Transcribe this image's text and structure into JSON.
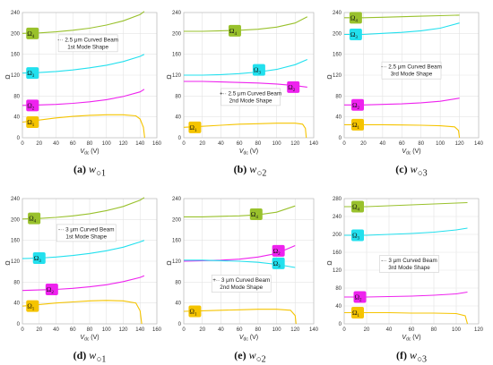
{
  "chart_data": [
    {
      "type": "line",
      "caption": {
        "label": "(a)",
        "symbol": "w",
        "subscript": "○1"
      },
      "xlabel": "V",
      "xlabel_sub": "dc",
      "xlabel_unit": "(V)",
      "ylabel": "Ω",
      "xlim": [
        0,
        160
      ],
      "ylim": [
        0,
        240
      ],
      "xticks": [
        0,
        20,
        40,
        60,
        80,
        100,
        120,
        140,
        160
      ],
      "yticks": [
        0,
        40,
        80,
        120,
        160,
        200,
        240
      ],
      "annotation": {
        "lines": [
          "2.5 μm Curved Beam",
          "1st Mode Shape"
        ],
        "marker": "-··",
        "pos": [
          78,
          182
        ]
      },
      "series": [
        {
          "name": "Ω₁",
          "color": "#f5c400",
          "x": [
            0,
            20,
            40,
            60,
            80,
            100,
            120,
            135,
            140,
            144,
            145.5
          ],
          "y": [
            30,
            34,
            38,
            41,
            43,
            44,
            44,
            42,
            36,
            20,
            0
          ],
          "badge": [
            12,
            30
          ]
        },
        {
          "name": "Ω₂",
          "color": "#ee22ee",
          "x": [
            0,
            20,
            40,
            60,
            80,
            100,
            120,
            140,
            145
          ],
          "y": [
            62,
            63,
            64,
            66,
            69,
            73,
            79,
            88,
            93
          ],
          "badge": [
            12,
            62
          ]
        },
        {
          "name": "Ω₃",
          "color": "#22e0ee",
          "x": [
            0,
            20,
            40,
            60,
            80,
            100,
            120,
            140,
            145
          ],
          "y": [
            124,
            125,
            127,
            130,
            134,
            139,
            146,
            156,
            160
          ],
          "badge": [
            12,
            124
          ]
        },
        {
          "name": "Ω₄",
          "color": "#99c12c",
          "x": [
            0,
            20,
            40,
            60,
            80,
            100,
            120,
            140,
            145
          ],
          "y": [
            200,
            201,
            203,
            206,
            210,
            216,
            224,
            236,
            242
          ],
          "badge": [
            12,
            200
          ]
        }
      ]
    },
    {
      "type": "line",
      "caption": {
        "label": "(b)",
        "symbol": "w",
        "subscript": "○2"
      },
      "xlabel": "V",
      "xlabel_sub": "dc",
      "xlabel_unit": "(V)",
      "ylabel": "Ω",
      "xlim": [
        0,
        140
      ],
      "ylim": [
        0,
        240
      ],
      "xticks": [
        0,
        20,
        40,
        60,
        80,
        100,
        120,
        140
      ],
      "yticks": [
        0,
        40,
        80,
        120,
        160,
        200,
        240
      ],
      "annotation": {
        "lines": [
          "2.5 μm Curved Beam",
          "2nd Mode Shape"
        ],
        "marker": "+··",
        "pos": [
          72,
          79
        ]
      },
      "series": [
        {
          "name": "Ω₁",
          "color": "#f5c400",
          "x": [
            0,
            20,
            40,
            60,
            80,
            100,
            120,
            128,
            131,
            132
          ],
          "y": [
            20,
            22,
            24,
            26,
            27,
            28,
            28,
            26,
            18,
            0
          ],
          "badge": [
            12,
            20
          ]
        },
        {
          "name": "Ω₂",
          "color": "#ee22ee",
          "x": [
            0,
            20,
            40,
            60,
            80,
            100,
            120,
            133
          ],
          "y": [
            108,
            108,
            107,
            106,
            105,
            103,
            100,
            97
          ],
          "badge": [
            118,
            97
          ]
        },
        {
          "name": "Ω₃",
          "color": "#22e0ee",
          "x": [
            0,
            20,
            40,
            60,
            80,
            100,
            120,
            133
          ],
          "y": [
            120,
            120,
            121,
            123,
            126,
            131,
            140,
            150
          ],
          "badge": [
            81,
            130
          ]
        },
        {
          "name": "Ω₄",
          "color": "#99c12c",
          "x": [
            0,
            20,
            40,
            60,
            80,
            100,
            120,
            133
          ],
          "y": [
            204,
            204,
            205,
            206,
            208,
            212,
            220,
            232
          ],
          "badge": [
            55,
            205
          ]
        }
      ]
    },
    {
      "type": "line",
      "caption": {
        "label": "(c)",
        "symbol": "w",
        "subscript": "○3"
      },
      "xlabel": "V",
      "xlabel_sub": "dc",
      "xlabel_unit": "(V)",
      "ylabel": "Ω",
      "xlim": [
        0,
        140
      ],
      "ylim": [
        0,
        240
      ],
      "xticks": [
        0,
        20,
        40,
        60,
        80,
        100,
        120,
        140
      ],
      "yticks": [
        0,
        40,
        80,
        120,
        160,
        200,
        240
      ],
      "annotation": {
        "lines": [
          "2.5 μm Curved Beam",
          "3rd Mode Shape"
        ],
        "marker": "-··",
        "pos": [
          70,
          130
        ]
      },
      "series": [
        {
          "name": "Ω₁",
          "color": "#f5c400",
          "x": [
            0,
            20,
            40,
            60,
            80,
            100,
            115,
            119,
            120
          ],
          "y": [
            25,
            25,
            25,
            24.5,
            24,
            23,
            21,
            14,
            0
          ],
          "badge": [
            14,
            25
          ]
        },
        {
          "name": "Ω₂",
          "color": "#ee22ee",
          "x": [
            0,
            20,
            40,
            60,
            80,
            100,
            120
          ],
          "y": [
            63,
            63,
            64,
            65,
            67,
            70,
            76
          ],
          "badge": [
            14,
            63
          ]
        },
        {
          "name": "Ω₃",
          "color": "#22e0ee",
          "x": [
            0,
            20,
            40,
            60,
            80,
            100,
            120
          ],
          "y": [
            198,
            198,
            200,
            202,
            205,
            210,
            220
          ],
          "badge": [
            12,
            198
          ]
        },
        {
          "name": "Ω₄",
          "color": "#99c12c",
          "x": [
            0,
            20,
            40,
            60,
            80,
            100,
            120
          ],
          "y": [
            230,
            230,
            231,
            232,
            233,
            234,
            235
          ],
          "badge": [
            12,
            230
          ]
        }
      ]
    },
    {
      "type": "line",
      "caption": {
        "label": "(d)",
        "symbol": "w",
        "subscript": "○1"
      },
      "xlabel": "V",
      "xlabel_sub": "dc",
      "xlabel_unit": "(V)",
      "ylabel": "Ω",
      "xlim": [
        0,
        160
      ],
      "ylim": [
        0,
        240
      ],
      "xticks": [
        0,
        20,
        40,
        60,
        80,
        100,
        120,
        140,
        160
      ],
      "yticks": [
        0,
        40,
        80,
        120,
        160,
        200,
        240
      ],
      "annotation": {
        "lines": [
          "3 μm Curved Beam",
          "1st Mode Shape"
        ],
        "marker": "-··",
        "pos": [
          76,
          175
        ]
      },
      "series": [
        {
          "name": "Ω₁",
          "color": "#f5c400",
          "x": [
            0,
            20,
            40,
            60,
            80,
            100,
            120,
            135,
            140,
            142
          ],
          "y": [
            34,
            37,
            40,
            42,
            44,
            45,
            44,
            40,
            25,
            0
          ],
          "badge": [
            12,
            34
          ]
        },
        {
          "name": "Ω₂",
          "color": "#ee22ee",
          "x": [
            0,
            20,
            40,
            60,
            80,
            100,
            120,
            140,
            145
          ],
          "y": [
            64,
            65,
            66,
            68,
            71,
            75,
            81,
            89,
            92
          ],
          "badge": [
            35,
            66
          ]
        },
        {
          "name": "Ω₃",
          "color": "#22e0ee",
          "x": [
            0,
            20,
            40,
            60,
            80,
            100,
            120,
            140,
            145
          ],
          "y": [
            125,
            126,
            128,
            131,
            135,
            140,
            147,
            157,
            160
          ],
          "badge": [
            20,
            126
          ]
        },
        {
          "name": "Ω₄",
          "color": "#99c12c",
          "x": [
            0,
            20,
            40,
            60,
            80,
            100,
            120,
            140,
            145
          ],
          "y": [
            201,
            202,
            204,
            207,
            211,
            217,
            225,
            237,
            242
          ],
          "badge": [
            14,
            202
          ]
        }
      ]
    },
    {
      "type": "line",
      "caption": {
        "label": "(e)",
        "symbol": "w",
        "subscript": "○2"
      },
      "xlabel": "V",
      "xlabel_sub": "dc",
      "xlabel_unit": "(V)",
      "ylabel": "Ω",
      "xlim": [
        0,
        140
      ],
      "ylim": [
        0,
        240
      ],
      "xticks": [
        0,
        20,
        40,
        60,
        80,
        100,
        120,
        140
      ],
      "yticks": [
        0,
        40,
        80,
        120,
        160,
        200,
        240
      ],
      "annotation": {
        "lines": [
          "3 μm Curved Beam",
          "2nd Mode Shape"
        ],
        "marker": "+··",
        "pos": [
          62,
          78
        ]
      },
      "series": [
        {
          "name": "Ω₁",
          "color": "#f5c400",
          "x": [
            0,
            20,
            40,
            60,
            80,
            100,
            115,
            120,
            121
          ],
          "y": [
            24,
            25,
            26,
            27,
            28,
            28,
            26,
            16,
            0
          ],
          "badge": [
            12,
            24
          ]
        },
        {
          "name": "Ω₂",
          "color": "#ee22ee",
          "x": [
            0,
            20,
            40,
            60,
            80,
            100,
            120
          ],
          "y": [
            120,
            121,
            122,
            124,
            128,
            135,
            150
          ],
          "badge": [
            102,
            140
          ]
        },
        {
          "name": "Ω₃",
          "color": "#22e0ee",
          "x": [
            0,
            20,
            40,
            60,
            80,
            100,
            120
          ],
          "y": [
            122,
            122,
            121,
            120,
            118,
            114,
            108
          ],
          "badge": [
            102,
            116
          ]
        },
        {
          "name": "Ω₄",
          "color": "#99c12c",
          "x": [
            0,
            20,
            40,
            60,
            80,
            100,
            120
          ],
          "y": [
            205,
            205,
            206,
            207,
            209,
            214,
            226
          ],
          "badge": [
            78,
            210
          ]
        }
      ]
    },
    {
      "type": "line",
      "caption": {
        "label": "(f)",
        "symbol": "w",
        "subscript": "○3"
      },
      "xlabel": "V",
      "xlabel_sub": "dc",
      "xlabel_unit": "(V)",
      "ylabel": "Ω",
      "xlim": [
        0,
        120
      ],
      "ylim": [
        0,
        280
      ],
      "xticks": [
        0,
        20,
        40,
        60,
        80,
        100,
        120
      ],
      "yticks": [
        0,
        40,
        80,
        120,
        160,
        200,
        240,
        280
      ],
      "annotation": {
        "lines": [
          "3 μm Curved Beam",
          "3rd Mode Shape"
        ],
        "marker": "-··",
        "pos": [
          58,
          135
        ]
      },
      "series": [
        {
          "name": "Ω₁",
          "color": "#f5c400",
          "x": [
            0,
            20,
            40,
            60,
            80,
            100,
            108,
            110
          ],
          "y": [
            25,
            25,
            25,
            24,
            24,
            23,
            18,
            0
          ],
          "badge": [
            12,
            25
          ]
        },
        {
          "name": "Ω₂",
          "color": "#ee22ee",
          "x": [
            0,
            20,
            40,
            60,
            80,
            100,
            110
          ],
          "y": [
            60,
            60,
            61,
            62,
            64,
            67,
            71
          ],
          "badge": [
            14,
            60
          ]
        },
        {
          "name": "Ω₃",
          "color": "#22e0ee",
          "x": [
            0,
            20,
            40,
            60,
            80,
            100,
            110
          ],
          "y": [
            198,
            198,
            200,
            202,
            205,
            210,
            214
          ],
          "badge": [
            12,
            198
          ]
        },
        {
          "name": "Ω₄",
          "color": "#99c12c",
          "x": [
            0,
            20,
            40,
            60,
            80,
            100,
            110
          ],
          "y": [
            262,
            262,
            264,
            266,
            268,
            270,
            271
          ],
          "badge": [
            12,
            262
          ]
        }
      ]
    }
  ]
}
